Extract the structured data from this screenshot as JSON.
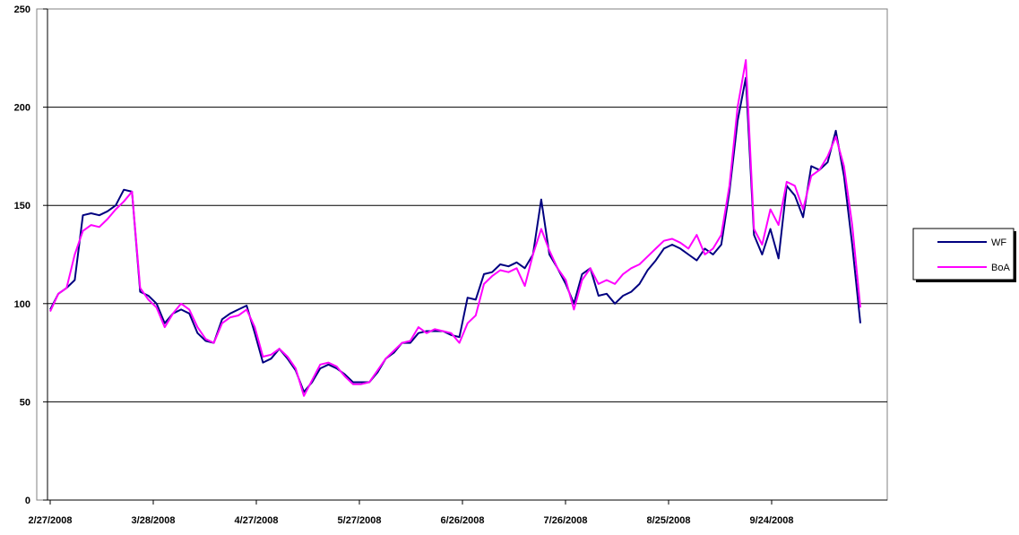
{
  "chart_data": {
    "type": "line",
    "title": "",
    "xlabel": "",
    "ylabel": "",
    "ylim": [
      0,
      250
    ],
    "yticks": [
      0,
      50,
      100,
      150,
      200,
      250
    ],
    "xticks": [
      "2/27/2008",
      "3/28/2008",
      "4/27/2008",
      "5/27/2008",
      "6/26/2008",
      "7/26/2008",
      "8/25/2008",
      "9/24/2008"
    ],
    "grid": true,
    "legend_position": "right",
    "x_count": 100,
    "series": [
      {
        "name": "WF",
        "color": "#000080",
        "points": [
          [
            0,
            97
          ],
          [
            1,
            105
          ],
          [
            2,
            108
          ],
          [
            3,
            112
          ],
          [
            4,
            145
          ],
          [
            5,
            146
          ],
          [
            6,
            145
          ],
          [
            7,
            147
          ],
          [
            8,
            150
          ],
          [
            9,
            158
          ],
          [
            10,
            157
          ],
          [
            11,
            106
          ],
          [
            12,
            104
          ],
          [
            13,
            100
          ],
          [
            14,
            90
          ],
          [
            15,
            95
          ],
          [
            16,
            97
          ],
          [
            17,
            95
          ],
          [
            18,
            85
          ],
          [
            19,
            81
          ],
          [
            20,
            80
          ],
          [
            21,
            92
          ],
          [
            22,
            95
          ],
          [
            23,
            97
          ],
          [
            24,
            99
          ],
          [
            25,
            85
          ],
          [
            26,
            70
          ],
          [
            27,
            72
          ],
          [
            28,
            77
          ],
          [
            29,
            72
          ],
          [
            30,
            66
          ],
          [
            31,
            55
          ],
          [
            32,
            60
          ],
          [
            33,
            67
          ],
          [
            34,
            69
          ],
          [
            35,
            67
          ],
          [
            36,
            64
          ],
          [
            37,
            60
          ],
          [
            38,
            60
          ],
          [
            39,
            60
          ],
          [
            40,
            65
          ],
          [
            41,
            72
          ],
          [
            42,
            75
          ],
          [
            43,
            80
          ],
          [
            44,
            80
          ],
          [
            45,
            85
          ],
          [
            46,
            86
          ],
          [
            47,
            86
          ],
          [
            48,
            86
          ],
          [
            49,
            84
          ],
          [
            50,
            83
          ],
          [
            51,
            103
          ],
          [
            52,
            102
          ],
          [
            53,
            115
          ],
          [
            54,
            116
          ],
          [
            55,
            120
          ],
          [
            56,
            119
          ],
          [
            57,
            121
          ],
          [
            58,
            118
          ],
          [
            59,
            125
          ],
          [
            60,
            153
          ],
          [
            61,
            125
          ],
          [
            62,
            118
          ],
          [
            63,
            110
          ],
          [
            64,
            100
          ],
          [
            65,
            115
          ],
          [
            66,
            118
          ],
          [
            67,
            104
          ],
          [
            68,
            105
          ],
          [
            69,
            100
          ],
          [
            70,
            104
          ],
          [
            71,
            106
          ],
          [
            72,
            110
          ],
          [
            73,
            117
          ],
          [
            74,
            122
          ],
          [
            75,
            128
          ],
          [
            76,
            130
          ],
          [
            77,
            128
          ],
          [
            78,
            125
          ],
          [
            79,
            122
          ],
          [
            80,
            128
          ],
          [
            81,
            125
          ],
          [
            82,
            130
          ],
          [
            83,
            157
          ],
          [
            84,
            193
          ],
          [
            85,
            215
          ],
          [
            86,
            135
          ],
          [
            87,
            125
          ],
          [
            88,
            138
          ],
          [
            89,
            123
          ],
          [
            90,
            160
          ],
          [
            91,
            155
          ],
          [
            92,
            144
          ],
          [
            93,
            170
          ],
          [
            94,
            168
          ],
          [
            95,
            172
          ],
          [
            96,
            188
          ],
          [
            97,
            165
          ],
          [
            98,
            130
          ],
          [
            99,
            90
          ]
        ]
      },
      {
        "name": "BoA",
        "color": "#ff00ff",
        "points": [
          [
            0,
            96
          ],
          [
            1,
            105
          ],
          [
            2,
            108
          ],
          [
            3,
            125
          ],
          [
            4,
            137
          ],
          [
            5,
            140
          ],
          [
            6,
            139
          ],
          [
            7,
            143
          ],
          [
            8,
            148
          ],
          [
            9,
            152
          ],
          [
            10,
            157
          ],
          [
            11,
            108
          ],
          [
            12,
            102
          ],
          [
            13,
            98
          ],
          [
            14,
            88
          ],
          [
            15,
            95
          ],
          [
            16,
            100
          ],
          [
            17,
            97
          ],
          [
            18,
            88
          ],
          [
            19,
            82
          ],
          [
            20,
            80
          ],
          [
            21,
            90
          ],
          [
            22,
            93
          ],
          [
            23,
            94
          ],
          [
            24,
            97
          ],
          [
            25,
            88
          ],
          [
            26,
            73
          ],
          [
            27,
            74
          ],
          [
            28,
            77
          ],
          [
            29,
            73
          ],
          [
            30,
            67
          ],
          [
            31,
            53
          ],
          [
            32,
            61
          ],
          [
            33,
            69
          ],
          [
            34,
            70
          ],
          [
            35,
            68
          ],
          [
            36,
            63
          ],
          [
            37,
            59
          ],
          [
            38,
            59
          ],
          [
            39,
            60
          ],
          [
            40,
            66
          ],
          [
            41,
            72
          ],
          [
            42,
            76
          ],
          [
            43,
            80
          ],
          [
            44,
            81
          ],
          [
            45,
            88
          ],
          [
            46,
            85
          ],
          [
            47,
            87
          ],
          [
            48,
            86
          ],
          [
            49,
            85
          ],
          [
            50,
            80
          ],
          [
            51,
            90
          ],
          [
            52,
            94
          ],
          [
            53,
            110
          ],
          [
            54,
            114
          ],
          [
            55,
            117
          ],
          [
            56,
            116
          ],
          [
            57,
            118
          ],
          [
            58,
            109
          ],
          [
            59,
            125
          ],
          [
            60,
            138
          ],
          [
            61,
            127
          ],
          [
            62,
            118
          ],
          [
            63,
            112
          ],
          [
            64,
            97
          ],
          [
            65,
            112
          ],
          [
            66,
            118
          ],
          [
            67,
            110
          ],
          [
            68,
            112
          ],
          [
            69,
            110
          ],
          [
            70,
            115
          ],
          [
            71,
            118
          ],
          [
            72,
            120
          ],
          [
            73,
            124
          ],
          [
            74,
            128
          ],
          [
            75,
            132
          ],
          [
            76,
            133
          ],
          [
            77,
            131
          ],
          [
            78,
            128
          ],
          [
            79,
            135
          ],
          [
            80,
            125
          ],
          [
            81,
            128
          ],
          [
            82,
            135
          ],
          [
            83,
            160
          ],
          [
            84,
            200
          ],
          [
            85,
            224
          ],
          [
            86,
            138
          ],
          [
            87,
            130
          ],
          [
            88,
            148
          ],
          [
            89,
            140
          ],
          [
            90,
            162
          ],
          [
            91,
            160
          ],
          [
            92,
            148
          ],
          [
            93,
            165
          ],
          [
            94,
            168
          ],
          [
            95,
            175
          ],
          [
            96,
            185
          ],
          [
            97,
            170
          ],
          [
            98,
            140
          ],
          [
            99,
            98
          ]
        ]
      }
    ]
  }
}
